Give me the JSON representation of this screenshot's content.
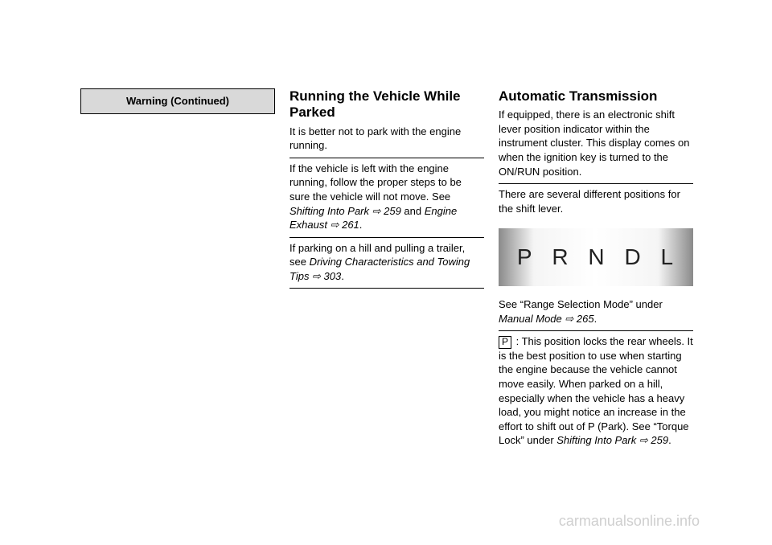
{
  "col1": {
    "warning_label": "Warning (Continued)"
  },
  "col2": {
    "title": "Running the Vehicle While Parked",
    "p1": "It is better not to park with the engine running.",
    "p2a": "If the vehicle is left with the engine running, follow the proper steps to be sure the vehicle will not move. See ",
    "p2_ref1": "Shifting Into Park ⇨ 259",
    "p2b": " and ",
    "p2_ref2": "Engine Exhaust ⇨ 261",
    "p2c": ".",
    "p3a": "If parking on a hill and pulling a trailer, see ",
    "p3_ref": "Driving Characteristics and Towing Tips ⇨ 303",
    "p3b": "."
  },
  "col3": {
    "title": "Automatic Transmission",
    "p1": "If equipped, there is an electronic shift lever position indicator within the instrument cluster. This display comes on when the ignition key is turned to the ON/RUN position.",
    "p2": "There are several different positions for the shift lever.",
    "gears": [
      "P",
      "R",
      "N",
      "D",
      "L"
    ],
    "p3a": "See “Range Selection Mode” under ",
    "p3_ref": "Manual Mode ⇨ 265",
    "p3b": ".",
    "p4_label": "P",
    "p4a": " : This position locks the rear wheels. It is the best position to use when starting the engine because the vehicle cannot move easily. When parked on a hill, especially when the vehicle has a heavy load, you might notice an increase in the effort to shift out of P (Park). See “Torque Lock” under ",
    "p4_ref": "Shifting Into Park ⇨ 259",
    "p4b": "."
  },
  "watermark": "carmanualsonline.info"
}
